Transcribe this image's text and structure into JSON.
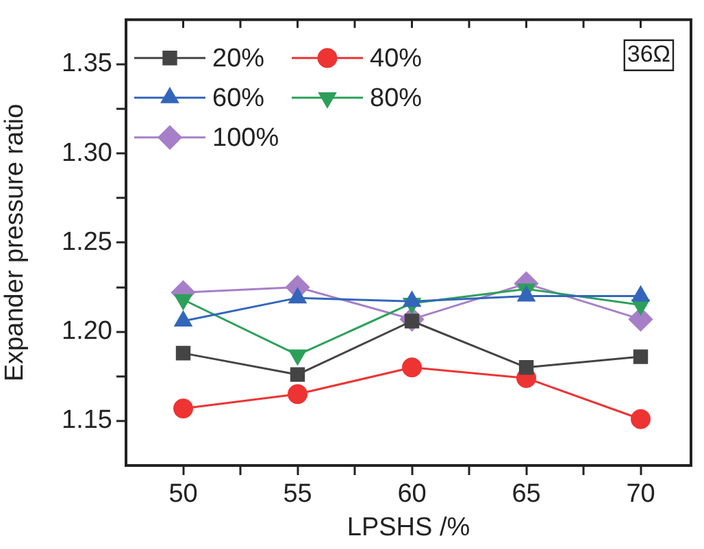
{
  "chart_data": {
    "type": "line",
    "xlabel": "LPSHS /%",
    "ylabel": "Expander pressure ratio",
    "x": [
      50,
      55,
      60,
      65,
      70
    ],
    "xlim": [
      47.5,
      72.2
    ],
    "xticks": [
      50,
      {
        "value": 52.5,
        "label": null
      },
      55,
      {
        "value": 57.5,
        "label": null
      },
      60,
      {
        "value": 62.5,
        "label": null
      },
      65,
      {
        "value": 67.5,
        "label": null
      },
      70
    ],
    "ylim": [
      1.125,
      1.375
    ],
    "yticks": [
      {
        "value": 1.15,
        "label": "1.15"
      },
      {
        "value": 1.175,
        "label": null
      },
      {
        "value": 1.2,
        "label": "1.20"
      },
      {
        "value": 1.225,
        "label": null
      },
      {
        "value": 1.25,
        "label": "1.25"
      },
      {
        "value": 1.275,
        "label": null
      },
      {
        "value": 1.3,
        "label": "1.30"
      },
      {
        "value": 1.325,
        "label": null
      },
      {
        "value": 1.35,
        "label": "1.35"
      }
    ],
    "series": [
      {
        "name": "20%",
        "color": "#444444",
        "marker": "square",
        "values": [
          1.188,
          1.176,
          1.206,
          1.18,
          1.186
        ]
      },
      {
        "name": "40%",
        "color": "#ee3333",
        "marker": "circle",
        "values": [
          1.157,
          1.165,
          1.18,
          1.174,
          1.151
        ]
      },
      {
        "name": "60%",
        "color": "#3366bb",
        "marker": "triangle",
        "values": [
          1.206,
          1.219,
          1.217,
          1.22,
          1.22
        ]
      },
      {
        "name": "80%",
        "color": "#2ca05a",
        "marker": "triangle-down",
        "values": [
          1.218,
          1.187,
          1.216,
          1.224,
          1.215
        ]
      },
      {
        "name": "100%",
        "color": "#a67fc8",
        "marker": "diamond",
        "values": [
          1.222,
          1.225,
          1.207,
          1.227,
          1.207
        ]
      }
    ],
    "legend": "top left",
    "grid": false,
    "line_style": "solid",
    "annotations": [
      "36Ω"
    ]
  }
}
